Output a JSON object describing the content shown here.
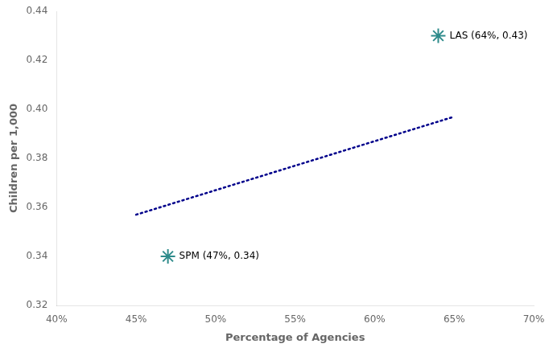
{
  "chart_data": {
    "type": "scatter",
    "xlabel": "Percentage of Agencies",
    "ylabel": "Children per 1,000",
    "series": [
      {
        "type": "line",
        "line_style": "dotted",
        "color": "#00008B",
        "x": [
          0.45,
          0.65
        ],
        "values": [
          0.357,
          0.397
        ]
      },
      {
        "type": "scatter",
        "marker": "star",
        "color": "#2E8B8B",
        "x": [
          0.47,
          0.64
        ],
        "values": [
          0.34,
          0.43
        ]
      }
    ],
    "annotations": [
      {
        "text": "SPM (47%, 0.34)",
        "x": 0.47,
        "y": 0.34
      },
      {
        "text": "LAS (64%, 0.43)",
        "x": 0.64,
        "y": 0.43
      }
    ],
    "xlim": [
      0.4,
      0.7
    ],
    "ylim": [
      0.32,
      0.44
    ],
    "xticks": [
      {
        "value": 0.4,
        "label": "40%"
      },
      {
        "value": 0.45,
        "label": "45%"
      },
      {
        "value": 0.5,
        "label": "50%"
      },
      {
        "value": 0.55,
        "label": "55%"
      },
      {
        "value": 0.6,
        "label": "60%"
      },
      {
        "value": 0.65,
        "label": "65%"
      },
      {
        "value": 0.7,
        "label": "70%"
      }
    ],
    "yticks": [
      0.32,
      0.34,
      0.36,
      0.38,
      {
        "value": 0.4,
        "label": "0.40"
      },
      0.42,
      0.44
    ],
    "grid": false,
    "legend": false
  }
}
